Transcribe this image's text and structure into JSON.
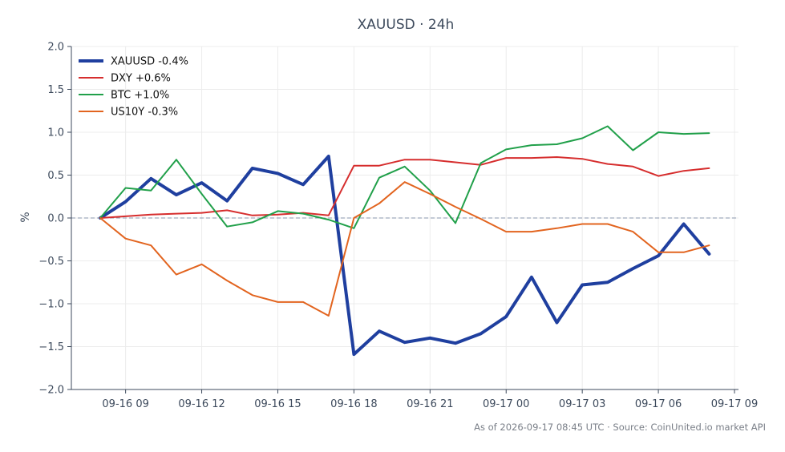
{
  "chart_data": {
    "type": "line",
    "title": "XAUUSD · 24h",
    "ylabel": "%",
    "xlabel": "",
    "ylim": [
      -2.0,
      2.0
    ],
    "y_ticks": [
      2.0,
      1.5,
      1.0,
      0.5,
      0.0,
      -0.5,
      -1.0,
      -1.5,
      -2.0
    ],
    "y_tick_labels": [
      "2.0",
      "1.5",
      "1.0",
      "0.5",
      "0.0",
      "−0.5",
      "−1.0",
      "−1.5",
      "−2.0"
    ],
    "x_range": [
      "09-16 08:00",
      "09-17 09:00"
    ],
    "x_ticks": [
      "09-16 09",
      "09-16 12",
      "09-16 15",
      "09-16 18",
      "09-16 21",
      "09-17 00",
      "09-17 03",
      "09-17 06",
      "09-17 09"
    ],
    "x": [
      "09-16 08:00",
      "09-16 09:00",
      "09-16 10:00",
      "09-16 11:00",
      "09-16 12:00",
      "09-16 13:00",
      "09-16 14:00",
      "09-16 15:00",
      "09-16 16:00",
      "09-16 17:00",
      "09-16 18:00",
      "09-16 19:00",
      "09-16 20:00",
      "09-16 21:00",
      "09-16 22:00",
      "09-16 23:00",
      "09-17 00:00",
      "09-17 01:00",
      "09-17 02:00",
      "09-17 03:00",
      "09-17 04:00",
      "09-17 05:00",
      "09-17 06:00",
      "09-17 07:00",
      "09-17 08:00"
    ],
    "grid": true,
    "zero_line": "dashed",
    "legend_position": "top-left",
    "series": [
      {
        "name": "XAUUSD -0.4%",
        "color": "#1f3f9f",
        "width": 4,
        "values": [
          0.0,
          0.19,
          0.46,
          0.27,
          0.41,
          0.2,
          0.58,
          0.52,
          0.39,
          0.72,
          -1.59,
          -1.32,
          -1.45,
          -1.4,
          -1.46,
          -1.35,
          -1.15,
          -0.69,
          -1.22,
          -0.78,
          -0.75,
          -0.59,
          -0.44,
          -0.07,
          -0.42
        ]
      },
      {
        "name": "DXY +0.6%",
        "color": "#d62e2e",
        "width": 2,
        "values": [
          0.0,
          0.02,
          0.04,
          0.05,
          0.06,
          0.09,
          0.03,
          0.04,
          0.06,
          0.03,
          0.61,
          0.61,
          0.68,
          0.68,
          0.65,
          0.62,
          0.7,
          0.7,
          0.71,
          0.69,
          0.63,
          0.6,
          0.49,
          0.55,
          0.58
        ]
      },
      {
        "name": "BTC +1.0%",
        "color": "#21a04a",
        "width": 2,
        "values": [
          0.0,
          0.35,
          0.32,
          0.68,
          0.28,
          -0.1,
          -0.05,
          0.08,
          0.05,
          -0.02,
          -0.12,
          0.47,
          0.6,
          0.32,
          -0.06,
          0.64,
          0.8,
          0.85,
          0.86,
          0.93,
          1.07,
          0.79,
          1.0,
          0.98,
          0.99
        ]
      },
      {
        "name": "US10Y -0.3%",
        "color": "#e2641f",
        "width": 2,
        "values": [
          0.0,
          -0.24,
          -0.32,
          -0.66,
          -0.54,
          -0.73,
          -0.9,
          -0.98,
          -0.98,
          -1.14,
          0.0,
          0.17,
          0.42,
          0.28,
          0.13,
          -0.01,
          -0.16,
          -0.16,
          -0.12,
          -0.07,
          -0.07,
          -0.16,
          -0.4,
          -0.4,
          -0.32
        ]
      }
    ]
  },
  "footer": "As of 2026-09-17 08:45 UTC · Source: CoinUnited.io market API"
}
